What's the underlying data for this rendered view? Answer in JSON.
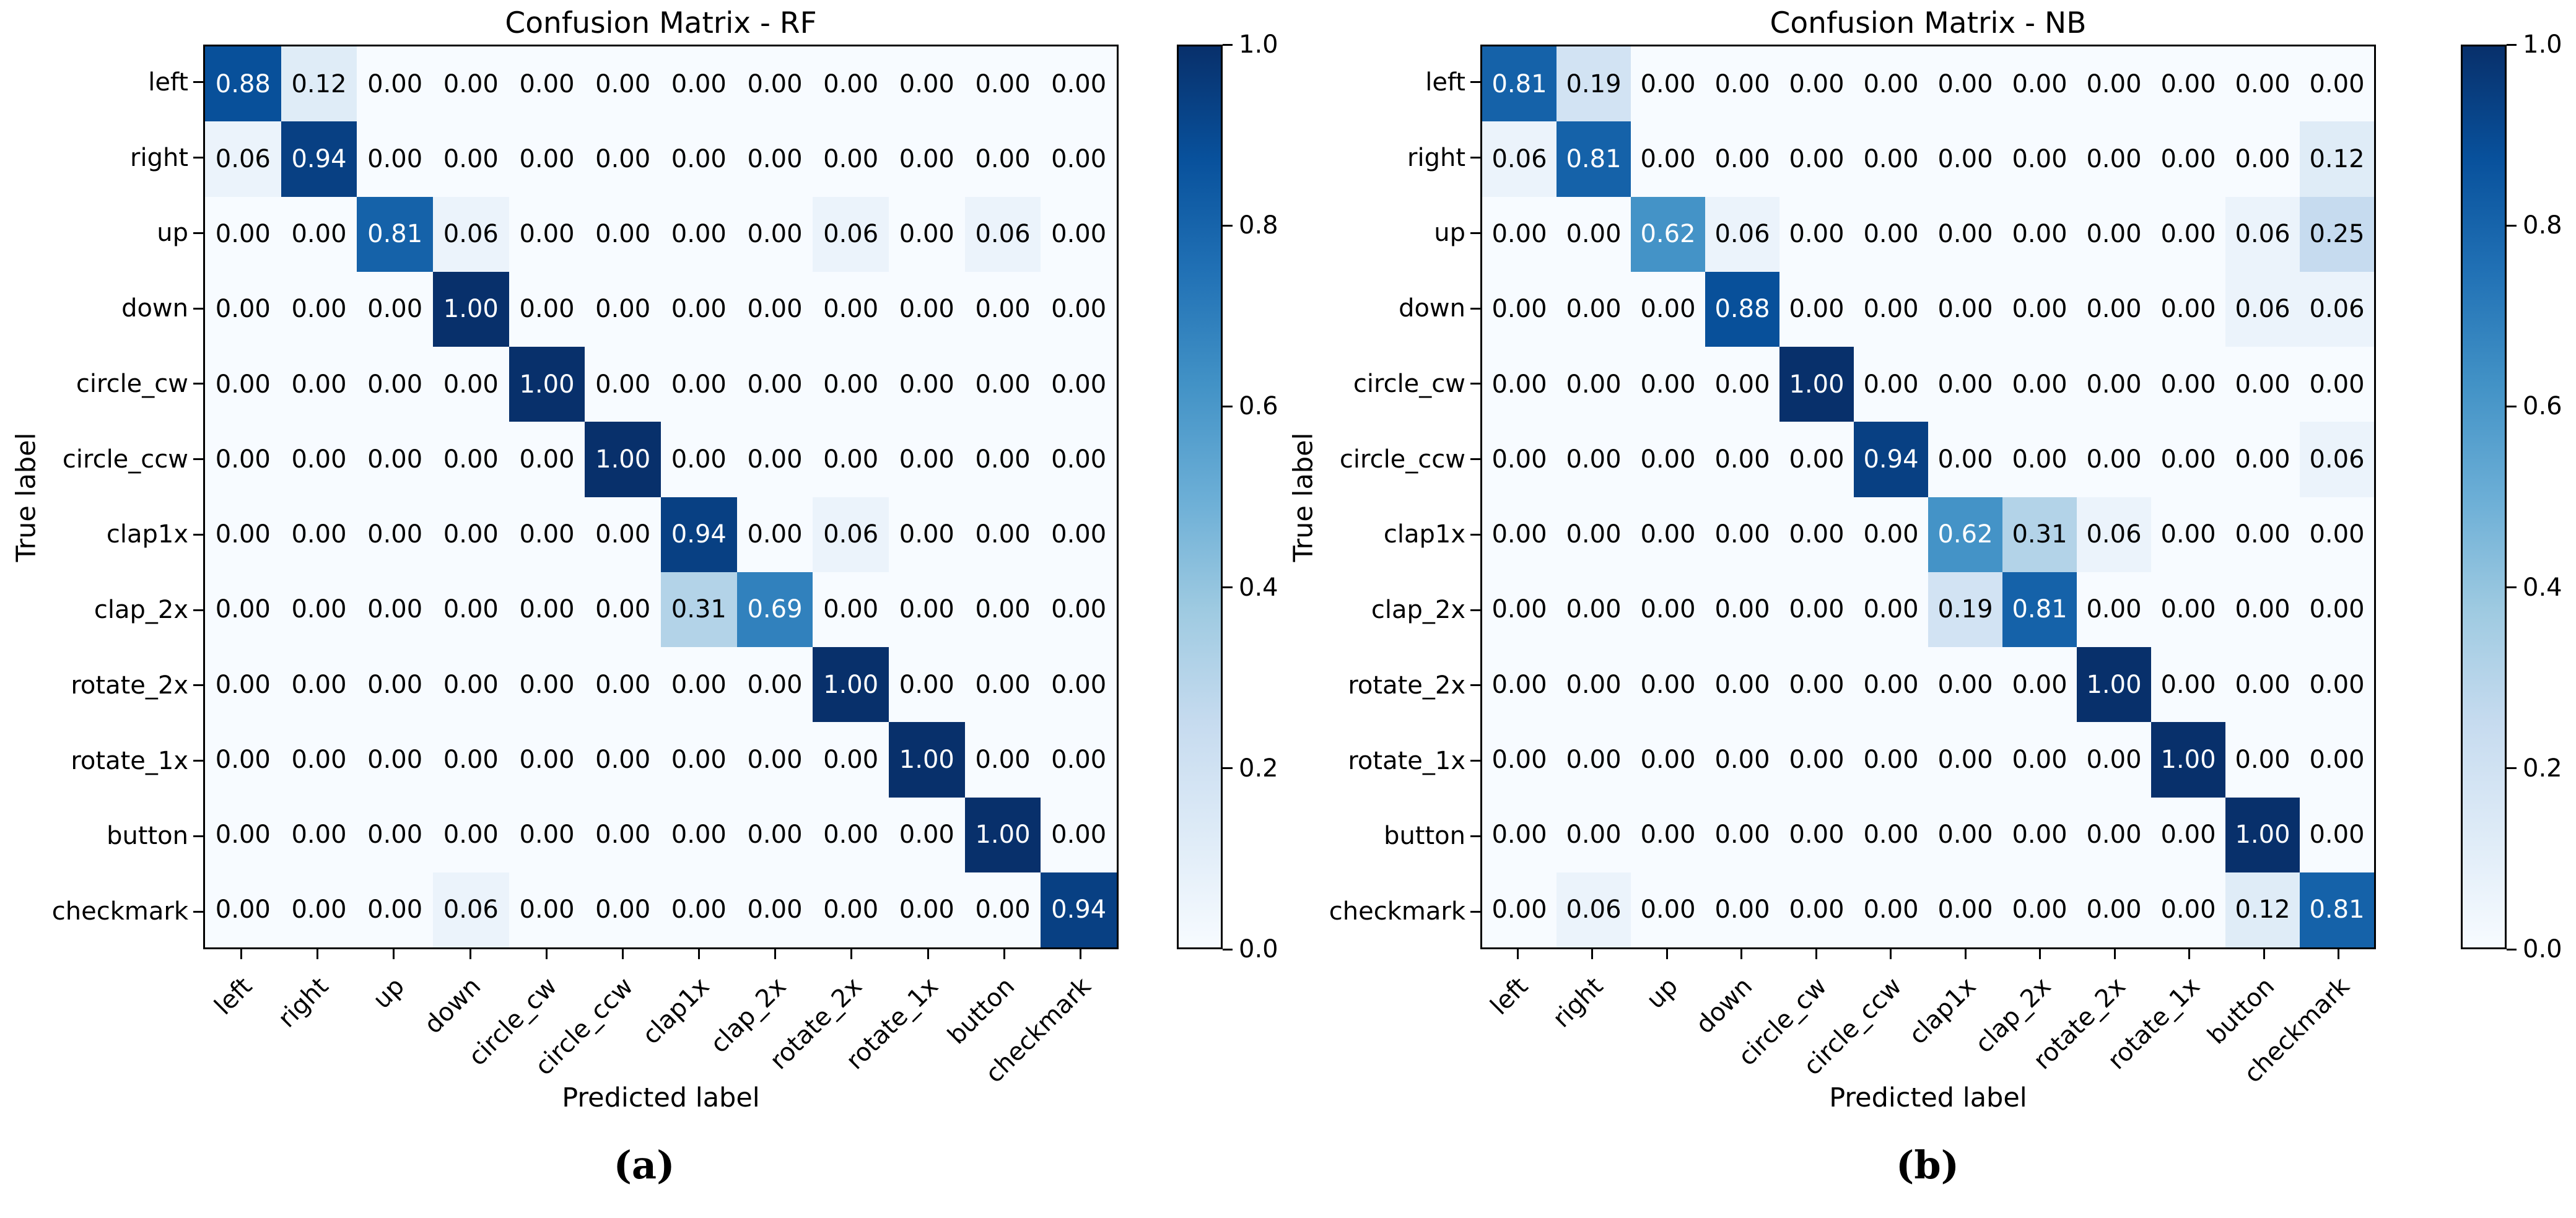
{
  "chart_data": [
    {
      "type": "heatmap",
      "panel": "a",
      "title": "Confusion Matrix - RF",
      "caption": "(a)",
      "xlabel": "Predicted label",
      "ylabel": "True label",
      "categories": [
        "left",
        "right",
        "up",
        "down",
        "circle_cw",
        "circle_ccw",
        "clap1x",
        "clap_2x",
        "rotate_2x",
        "rotate_1x",
        "button",
        "checkmark"
      ],
      "matrix": [
        [
          0.88,
          0.12,
          0.0,
          0.0,
          0.0,
          0.0,
          0.0,
          0.0,
          0.0,
          0.0,
          0.0,
          0.0
        ],
        [
          0.06,
          0.94,
          0.0,
          0.0,
          0.0,
          0.0,
          0.0,
          0.0,
          0.0,
          0.0,
          0.0,
          0.0
        ],
        [
          0.0,
          0.0,
          0.81,
          0.06,
          0.0,
          0.0,
          0.0,
          0.0,
          0.06,
          0.0,
          0.06,
          0.0
        ],
        [
          0.0,
          0.0,
          0.0,
          1.0,
          0.0,
          0.0,
          0.0,
          0.0,
          0.0,
          0.0,
          0.0,
          0.0
        ],
        [
          0.0,
          0.0,
          0.0,
          0.0,
          1.0,
          0.0,
          0.0,
          0.0,
          0.0,
          0.0,
          0.0,
          0.0
        ],
        [
          0.0,
          0.0,
          0.0,
          0.0,
          0.0,
          1.0,
          0.0,
          0.0,
          0.0,
          0.0,
          0.0,
          0.0
        ],
        [
          0.0,
          0.0,
          0.0,
          0.0,
          0.0,
          0.0,
          0.94,
          0.0,
          0.06,
          0.0,
          0.0,
          0.0
        ],
        [
          0.0,
          0.0,
          0.0,
          0.0,
          0.0,
          0.0,
          0.31,
          0.69,
          0.0,
          0.0,
          0.0,
          0.0
        ],
        [
          0.0,
          0.0,
          0.0,
          0.0,
          0.0,
          0.0,
          0.0,
          0.0,
          1.0,
          0.0,
          0.0,
          0.0
        ],
        [
          0.0,
          0.0,
          0.0,
          0.0,
          0.0,
          0.0,
          0.0,
          0.0,
          0.0,
          1.0,
          0.0,
          0.0
        ],
        [
          0.0,
          0.0,
          0.0,
          0.0,
          0.0,
          0.0,
          0.0,
          0.0,
          0.0,
          0.0,
          1.0,
          0.0
        ],
        [
          0.0,
          0.0,
          0.0,
          0.06,
          0.0,
          0.0,
          0.0,
          0.0,
          0.0,
          0.0,
          0.0,
          0.94
        ]
      ],
      "vmin": 0.0,
      "vmax": 1.0,
      "colorbar_ticks": [
        "1.0",
        "0.8",
        "0.6",
        "0.4",
        "0.2",
        "0.0"
      ],
      "legend_position": "right-colorbar",
      "grid": false
    },
    {
      "type": "heatmap",
      "panel": "b",
      "title": "Confusion Matrix - NB",
      "caption": "(b)",
      "xlabel": "Predicted label",
      "ylabel": "True label",
      "categories": [
        "left",
        "right",
        "up",
        "down",
        "circle_cw",
        "circle_ccw",
        "clap1x",
        "clap_2x",
        "rotate_2x",
        "rotate_1x",
        "button",
        "checkmark"
      ],
      "matrix": [
        [
          0.81,
          0.19,
          0.0,
          0.0,
          0.0,
          0.0,
          0.0,
          0.0,
          0.0,
          0.0,
          0.0,
          0.0
        ],
        [
          0.06,
          0.81,
          0.0,
          0.0,
          0.0,
          0.0,
          0.0,
          0.0,
          0.0,
          0.0,
          0.0,
          0.12
        ],
        [
          0.0,
          0.0,
          0.62,
          0.06,
          0.0,
          0.0,
          0.0,
          0.0,
          0.0,
          0.0,
          0.06,
          0.25
        ],
        [
          0.0,
          0.0,
          0.0,
          0.88,
          0.0,
          0.0,
          0.0,
          0.0,
          0.0,
          0.0,
          0.06,
          0.06
        ],
        [
          0.0,
          0.0,
          0.0,
          0.0,
          1.0,
          0.0,
          0.0,
          0.0,
          0.0,
          0.0,
          0.0,
          0.0
        ],
        [
          0.0,
          0.0,
          0.0,
          0.0,
          0.0,
          0.94,
          0.0,
          0.0,
          0.0,
          0.0,
          0.0,
          0.06
        ],
        [
          0.0,
          0.0,
          0.0,
          0.0,
          0.0,
          0.0,
          0.62,
          0.31,
          0.06,
          0.0,
          0.0,
          0.0
        ],
        [
          0.0,
          0.0,
          0.0,
          0.0,
          0.0,
          0.0,
          0.19,
          0.81,
          0.0,
          0.0,
          0.0,
          0.0
        ],
        [
          0.0,
          0.0,
          0.0,
          0.0,
          0.0,
          0.0,
          0.0,
          0.0,
          1.0,
          0.0,
          0.0,
          0.0
        ],
        [
          0.0,
          0.0,
          0.0,
          0.0,
          0.0,
          0.0,
          0.0,
          0.0,
          0.0,
          1.0,
          0.0,
          0.0
        ],
        [
          0.0,
          0.0,
          0.0,
          0.0,
          0.0,
          0.0,
          0.0,
          0.0,
          0.0,
          0.0,
          1.0,
          0.0
        ],
        [
          0.0,
          0.06,
          0.0,
          0.0,
          0.0,
          0.0,
          0.0,
          0.0,
          0.0,
          0.0,
          0.12,
          0.81
        ]
      ],
      "vmin": 0.0,
      "vmax": 1.0,
      "colorbar_ticks": [
        "1.0",
        "0.8",
        "0.6",
        "0.4",
        "0.2",
        "0.0"
      ],
      "legend_position": "right-colorbar",
      "grid": false
    }
  ],
  "colormap": {
    "name": "Blues",
    "low_color": "#f7fbff",
    "high_color": "#08306b",
    "anchors": [
      "#f7fbff",
      "#deebf7",
      "#c6dbef",
      "#9ecae1",
      "#6baed6",
      "#4292c6",
      "#2171b5",
      "#08519c",
      "#08306b"
    ]
  },
  "cell_text": {
    "dark_on_light": "#000000",
    "light_on_dark": "#ffffff"
  }
}
